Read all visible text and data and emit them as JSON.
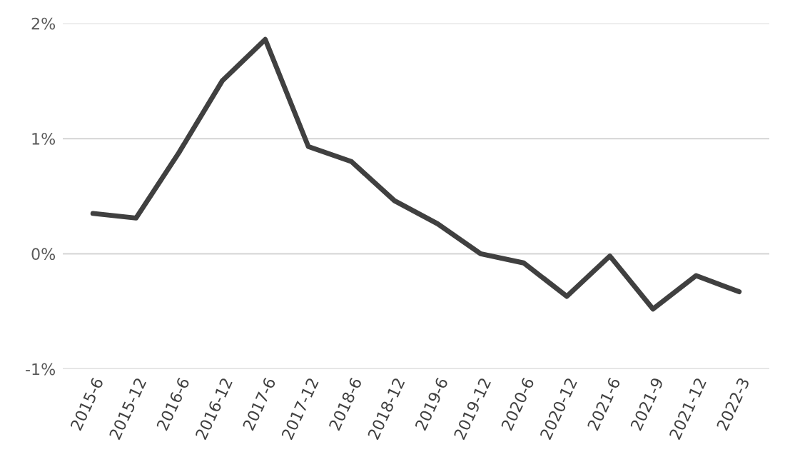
{
  "chart_data": {
    "type": "line",
    "categories": [
      "2015-6",
      "2015-12",
      "2016-6",
      "2016-12",
      "2017-6",
      "2017-12",
      "2018-6",
      "2018-12",
      "2019-6",
      "2019-12",
      "2020-6",
      "2020-12",
      "2021-6",
      "2021-9",
      "2021-12",
      "2022-3"
    ],
    "series": [
      {
        "color": "#404040",
        "values": [
          0.35,
          0.31,
          0.88,
          1.5,
          1.86,
          0.93,
          0.8,
          0.46,
          0.26,
          0.0,
          -0.08,
          -0.37,
          -0.02,
          -0.48,
          -0.19,
          -0.33
        ]
      }
    ],
    "ylim": [
      -1,
      2
    ],
    "yticks": [
      {
        "value": -1,
        "label": "-1%"
      },
      {
        "value": 0,
        "label": "0%"
      },
      {
        "value": 1,
        "label": "1%"
      },
      {
        "value": 2,
        "label": "2%"
      }
    ],
    "grid": "y",
    "legend": false,
    "marker": "none",
    "line_style": "solid"
  }
}
